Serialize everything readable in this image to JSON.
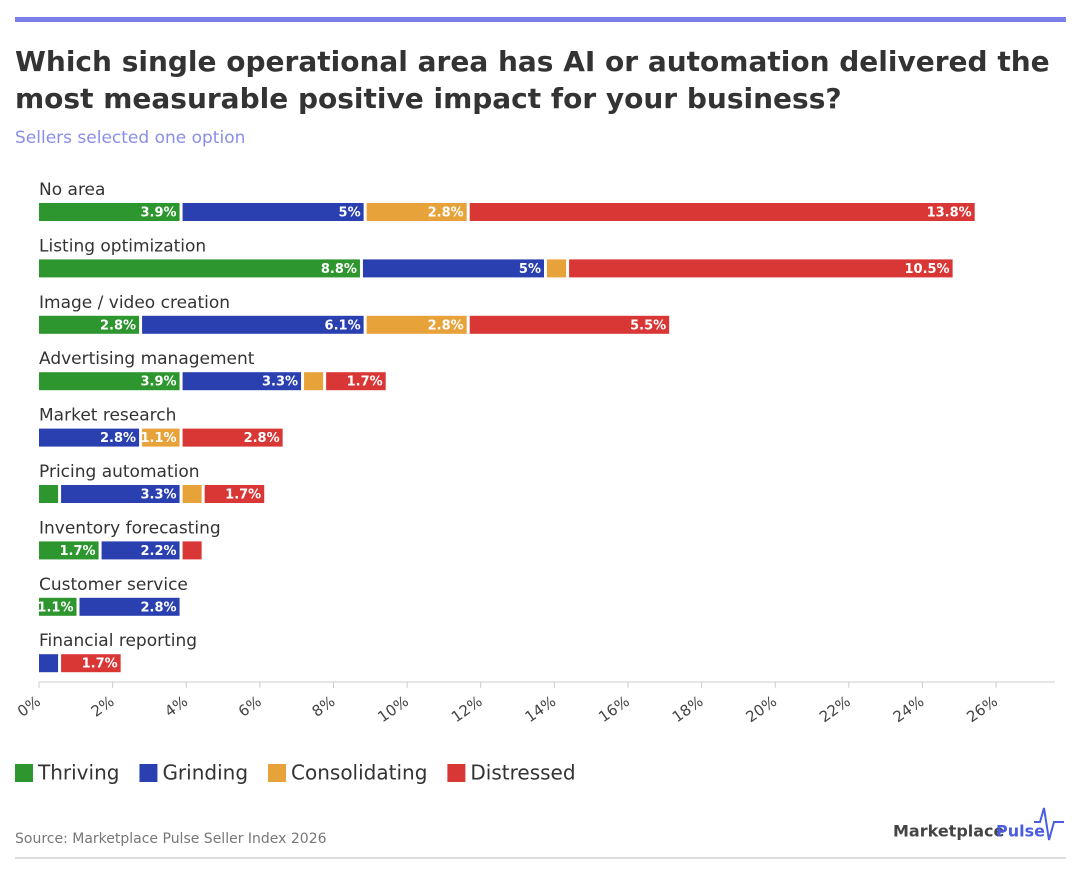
{
  "chart_data": {
    "type": "stacked-barh",
    "title": [
      "Which single operational area has AI or automation delivered the",
      "most measurable positive impact for your business?"
    ],
    "subtitle": "Sellers selected one option",
    "categories": [
      "No area",
      "Listing optimization",
      "Image / video creation",
      "Advertising management",
      "Market research",
      "Pricing automation",
      "Inventory forecasting",
      "Customer service",
      "Financial reporting"
    ],
    "series": [
      {
        "name": "Thriving",
        "color": "#2e962e",
        "values": [
          3.9,
          8.8,
          2.8,
          3.9,
          0,
          0.6,
          1.7,
          1.1,
          0
        ],
        "value_labels": [
          "3.9%",
          "8.8%",
          "2.8%",
          "3.9%",
          null,
          null,
          "1.7%",
          "1.1%",
          null
        ]
      },
      {
        "name": "Grinding",
        "color": "#2a40b0",
        "values": [
          5,
          5,
          6.1,
          3.3,
          2.8,
          3.3,
          2.2,
          2.8,
          0.6
        ],
        "value_labels": [
          "5%",
          "5%",
          "6.1%",
          "3.3%",
          "2.8%",
          "3.3%",
          "2.2%",
          "2.8%",
          null
        ]
      },
      {
        "name": "Consolidating",
        "color": "#e8a23a",
        "values": [
          2.8,
          0.6,
          2.8,
          0.6,
          1.1,
          0.6,
          0,
          0,
          0
        ],
        "value_labels": [
          "2.8%",
          null,
          "2.8%",
          null,
          "1.1%",
          null,
          null,
          null,
          null
        ]
      },
      {
        "name": "Distressed",
        "color": "#d93636",
        "values": [
          13.8,
          10.5,
          5.5,
          1.7,
          2.8,
          1.7,
          0.6,
          0,
          1.7
        ],
        "value_labels": [
          "13.8%",
          "10.5%",
          "5.5%",
          "1.7%",
          "2.8%",
          "1.7%",
          null,
          null,
          "1.7%"
        ]
      }
    ],
    "xlim": [
      0,
      27.6
    ],
    "xticks": [
      {
        "value": 0,
        "label": "0%"
      },
      {
        "value": 2,
        "label": "2%"
      },
      {
        "value": 4,
        "label": "4%"
      },
      {
        "value": 6,
        "label": "6%"
      },
      {
        "value": 8,
        "label": "8%"
      },
      {
        "value": 10,
        "label": "10%"
      },
      {
        "value": 12,
        "label": "12%"
      },
      {
        "value": 14,
        "label": "14%"
      },
      {
        "value": 16,
        "label": "16%"
      },
      {
        "value": 18,
        "label": "18%"
      },
      {
        "value": 20,
        "label": "20%"
      },
      {
        "value": 22,
        "label": "22%"
      },
      {
        "value": 24,
        "label": "24%"
      },
      {
        "value": 26,
        "label": "26%"
      }
    ],
    "source": "Source: Marketplace Pulse Seller Index 2026",
    "brand": [
      "Marketplace",
      "Pulse"
    ]
  }
}
